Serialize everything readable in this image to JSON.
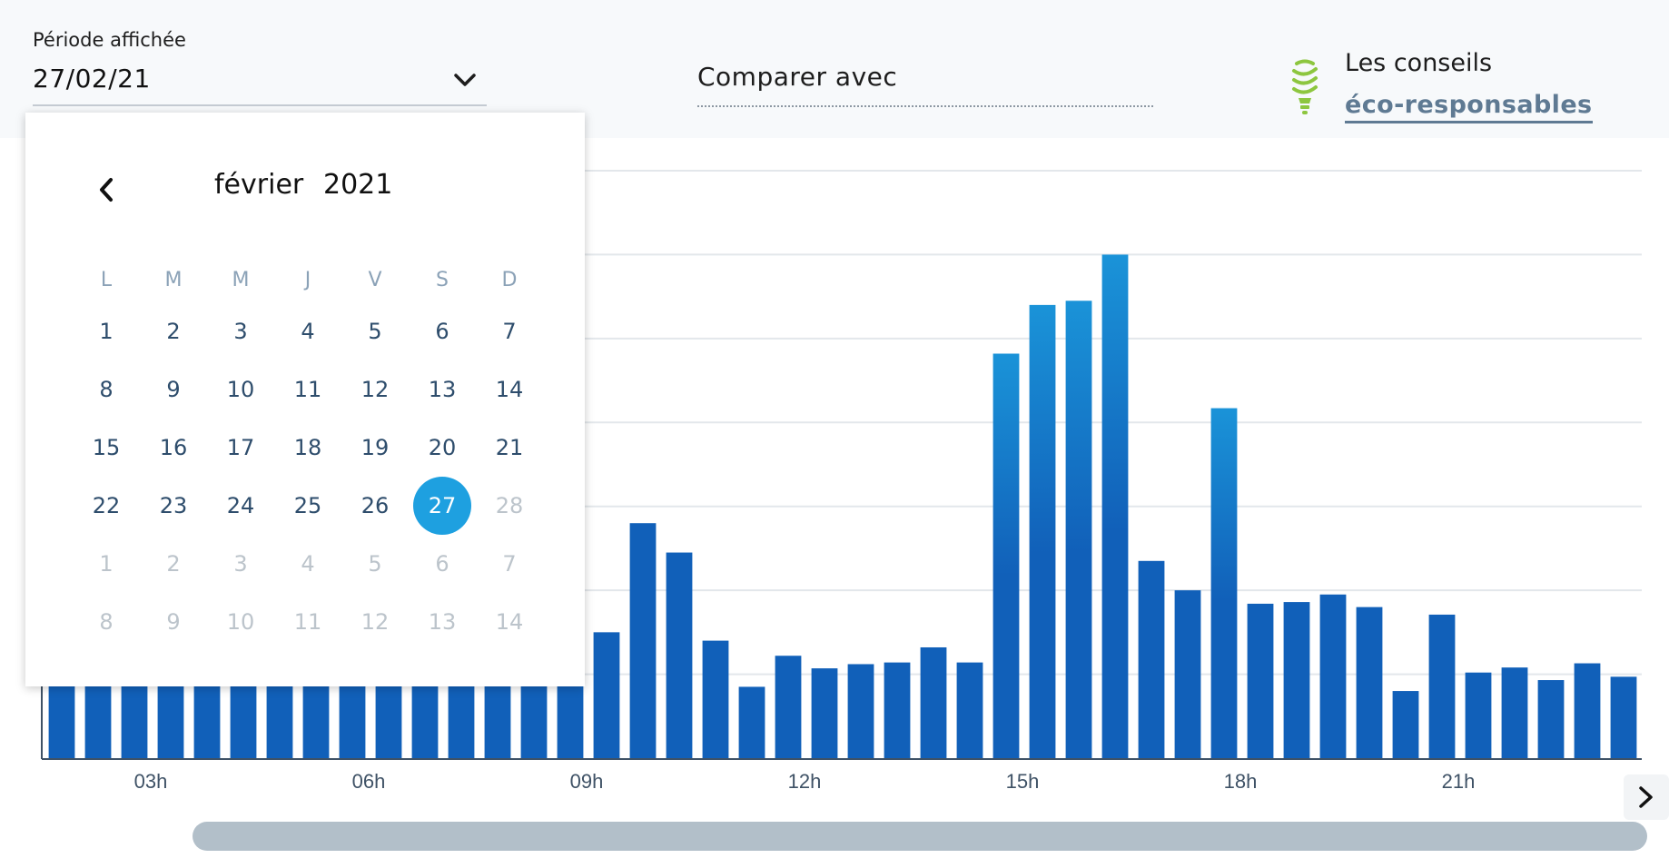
{
  "header": {
    "period_label": "Période affichée",
    "period_value": "27/02/21",
    "compare_label": "Comparer avec",
    "tips_line1": "Les conseils",
    "tips_line2": "éco-responsables"
  },
  "colors": {
    "bar": "#1160b9",
    "bar_peak": "#1a93d8",
    "selected_day": "#1ea0e0",
    "link": "#5f7a93",
    "bulb": "#8dc63f",
    "scrollbar": "#b2bfc9"
  },
  "calendar": {
    "month": "février",
    "year": "2021",
    "weekdays": [
      "L",
      "M",
      "M",
      "J",
      "V",
      "S",
      "D"
    ],
    "weeks": [
      [
        {
          "d": "1"
        },
        {
          "d": "2"
        },
        {
          "d": "3"
        },
        {
          "d": "4"
        },
        {
          "d": "5"
        },
        {
          "d": "6"
        },
        {
          "d": "7"
        }
      ],
      [
        {
          "d": "8"
        },
        {
          "d": "9"
        },
        {
          "d": "10"
        },
        {
          "d": "11"
        },
        {
          "d": "12"
        },
        {
          "d": "13"
        },
        {
          "d": "14"
        }
      ],
      [
        {
          "d": "15"
        },
        {
          "d": "16"
        },
        {
          "d": "17"
        },
        {
          "d": "18"
        },
        {
          "d": "19"
        },
        {
          "d": "20"
        },
        {
          "d": "21"
        }
      ],
      [
        {
          "d": "22"
        },
        {
          "d": "23"
        },
        {
          "d": "24"
        },
        {
          "d": "25"
        },
        {
          "d": "26"
        },
        {
          "d": "27",
          "selected": true
        },
        {
          "d": "28",
          "other": true
        }
      ],
      [
        {
          "d": "1",
          "other": true
        },
        {
          "d": "2",
          "other": true
        },
        {
          "d": "3",
          "other": true
        },
        {
          "d": "4",
          "other": true
        },
        {
          "d": "5",
          "other": true
        },
        {
          "d": "6",
          "other": true
        },
        {
          "d": "7",
          "other": true
        }
      ],
      [
        {
          "d": "8",
          "other": true
        },
        {
          "d": "9",
          "other": true
        },
        {
          "d": "10",
          "other": true
        },
        {
          "d": "11",
          "other": true
        },
        {
          "d": "12",
          "other": true
        },
        {
          "d": "13",
          "other": true
        },
        {
          "d": "14",
          "other": true
        }
      ]
    ]
  },
  "chart_data": {
    "type": "bar",
    "tick_labels": [
      "03h",
      "06h",
      "09h",
      "12h",
      "15h",
      "18h",
      "21h"
    ],
    "tick_positions": [
      2.5,
      8.5,
      14.5,
      20.5,
      26.5,
      32.5,
      38.5
    ],
    "values": [
      1.0,
      1.0,
      1.0,
      1.0,
      1.0,
      1.0,
      1.0,
      1.0,
      1.0,
      1.0,
      1.0,
      1.0,
      1.0,
      1.0,
      1.0,
      1.5,
      2.8,
      2.45,
      1.4,
      0.85,
      1.22,
      1.07,
      1.12,
      1.14,
      1.32,
      1.14,
      4.82,
      5.4,
      5.45,
      6.0,
      2.35,
      2.0,
      4.17,
      1.84,
      1.86,
      1.95,
      1.8,
      0.8,
      1.71,
      1.02,
      1.08,
      0.93,
      1.13,
      0.97
    ],
    "ylim": [
      0,
      7
    ],
    "grid": true,
    "bar_color": "#1160b9",
    "peak_color": "#1a93d8"
  }
}
